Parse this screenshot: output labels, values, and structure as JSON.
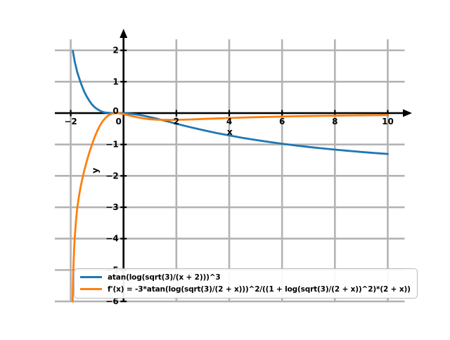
{
  "chart_data": {
    "type": "line",
    "title": "",
    "xlabel": "x",
    "ylabel": "y",
    "grid": true,
    "legend_position": "lower left",
    "xlim": [
      -2.6,
      10.64
    ],
    "ylim": [
      -6.01,
      2.35
    ],
    "x_tick_values": [
      -2,
      0,
      2,
      4,
      6,
      8,
      10
    ],
    "x_tick_labels": [
      "−2",
      "0",
      "2",
      "4",
      "6",
      "8",
      "10"
    ],
    "y_tick_values": [
      2,
      1,
      0,
      -1,
      -2,
      -3,
      -4,
      -5,
      -6
    ],
    "y_tick_labels": [
      "2",
      "1",
      "0",
      "−1",
      "−2",
      "−3",
      "−4",
      "−5",
      "−6"
    ],
    "series": [
      {
        "name": "atan(log(sqrt(3)/(x + 2)))^3",
        "color": "#1f77b4",
        "points": [
          [
            -1.92,
            1.98
          ],
          [
            -1.9,
            1.89
          ],
          [
            -1.85,
            1.65
          ],
          [
            -1.8,
            1.47
          ],
          [
            -1.75,
            1.3
          ],
          [
            -1.7,
            1.17
          ],
          [
            -1.65,
            1.04
          ],
          [
            -1.6,
            0.92
          ],
          [
            -1.55,
            0.81
          ],
          [
            -1.5,
            0.71
          ],
          [
            -1.45,
            0.62
          ],
          [
            -1.4,
            0.54
          ],
          [
            -1.3,
            0.4
          ],
          [
            -1.2,
            0.28
          ],
          [
            -1.1,
            0.19
          ],
          [
            -1.0,
            0.13
          ],
          [
            -0.9,
            0.08
          ],
          [
            -0.8,
            0.04
          ],
          [
            -0.7,
            0.02
          ],
          [
            -0.6,
            0.01
          ],
          [
            -0.5,
            0.003
          ],
          [
            -0.27,
            0
          ],
          [
            0,
            -0.003
          ],
          [
            0.25,
            -0.017
          ],
          [
            0.5,
            -0.044
          ],
          [
            0.75,
            -0.081
          ],
          [
            1,
            -0.127
          ],
          [
            1.25,
            -0.178
          ],
          [
            1.5,
            -0.23
          ],
          [
            1.75,
            -0.284
          ],
          [
            2,
            -0.339
          ],
          [
            2.5,
            -0.444
          ],
          [
            3,
            -0.54
          ],
          [
            3.5,
            -0.632
          ],
          [
            4,
            -0.712
          ],
          [
            4.5,
            -0.787
          ],
          [
            5,
            -0.856
          ],
          [
            5.5,
            -0.919
          ],
          [
            6,
            -0.976
          ],
          [
            6.5,
            -1.029
          ],
          [
            7,
            -1.078
          ],
          [
            7.5,
            -1.122
          ],
          [
            8,
            -1.164
          ],
          [
            8.5,
            -1.203
          ],
          [
            9,
            -1.239
          ],
          [
            9.5,
            -1.272
          ],
          [
            10,
            -1.304
          ]
        ]
      },
      {
        "name": "f'(x) = -3*atan(log(sqrt(3)/(2 + x)))^2/((1 + log(sqrt(3)/(2 + x))^2)*(2 + x))",
        "color": "#ff7f0e",
        "points": [
          [
            -1.928,
            -6.0
          ],
          [
            -1.92,
            -5.66
          ],
          [
            -1.91,
            -5.3
          ],
          [
            -1.9,
            -5.02
          ],
          [
            -1.89,
            -4.74
          ],
          [
            -1.88,
            -4.52
          ],
          [
            -1.86,
            -4.17
          ],
          [
            -1.84,
            -3.87
          ],
          [
            -1.8,
            -3.43
          ],
          [
            -1.75,
            -3.02
          ],
          [
            -1.7,
            -2.72
          ],
          [
            -1.65,
            -2.47
          ],
          [
            -1.6,
            -2.25
          ],
          [
            -1.5,
            -1.88
          ],
          [
            -1.4,
            -1.56
          ],
          [
            -1.3,
            -1.27
          ],
          [
            -1.2,
            -1.02
          ],
          [
            -1.1,
            -0.78
          ],
          [
            -1.0,
            -0.58
          ],
          [
            -0.9,
            -0.41
          ],
          [
            -0.8,
            -0.27
          ],
          [
            -0.7,
            -0.17
          ],
          [
            -0.6,
            -0.09
          ],
          [
            -0.5,
            -0.04
          ],
          [
            -0.4,
            -0.012
          ],
          [
            -0.27,
            0
          ],
          [
            -0.1,
            -0.013
          ],
          [
            0,
            -0.03
          ],
          [
            0.25,
            -0.082
          ],
          [
            0.5,
            -0.131
          ],
          [
            0.75,
            -0.168
          ],
          [
            1,
            -0.194
          ],
          [
            1.25,
            -0.209
          ],
          [
            1.5,
            -0.215
          ],
          [
            1.75,
            -0.217
          ],
          [
            2,
            -0.214
          ],
          [
            2.5,
            -0.203
          ],
          [
            3,
            -0.187
          ],
          [
            3.5,
            -0.172
          ],
          [
            4,
            -0.157
          ],
          [
            4.5,
            -0.143
          ],
          [
            5,
            -0.131
          ],
          [
            5.5,
            -0.12
          ],
          [
            6,
            -0.11
          ],
          [
            6.5,
            -0.102
          ],
          [
            7,
            -0.094
          ],
          [
            7.5,
            -0.088
          ],
          [
            8,
            -0.082
          ],
          [
            8.5,
            -0.076
          ],
          [
            9,
            -0.071
          ],
          [
            9.5,
            -0.067
          ],
          [
            10,
            -0.063
          ]
        ]
      }
    ]
  },
  "colors": {
    "background": "#ffffff",
    "grid": "#b3b3b3",
    "axis": "#000000",
    "tick_label": "#000000",
    "legend_border": "#b9b9b9"
  }
}
